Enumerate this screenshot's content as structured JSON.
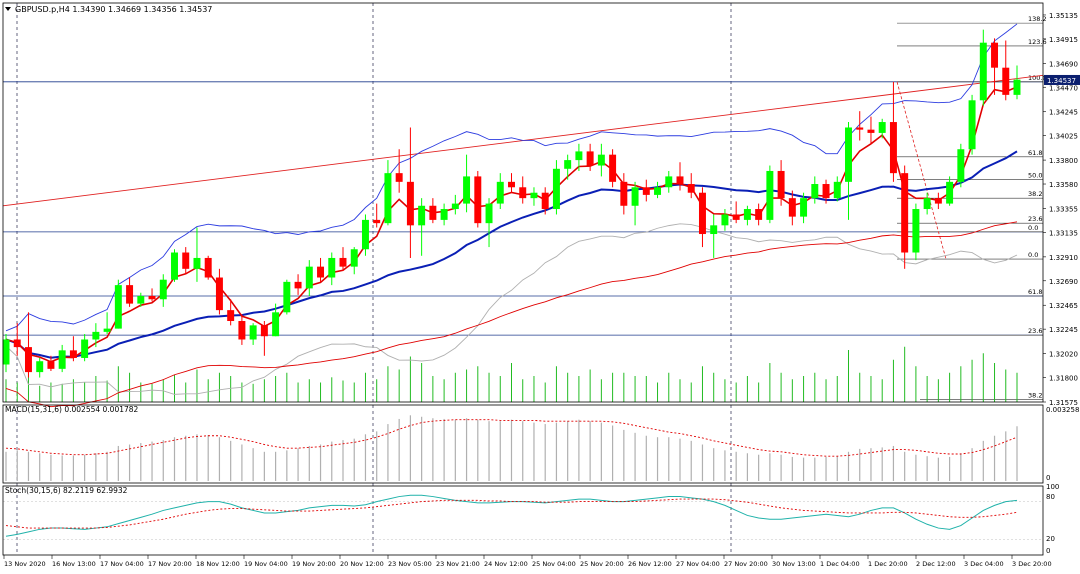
{
  "header": {
    "title": "GBPUSD.p,H4  1.34390  1.34669  1.34356  1.34537"
  },
  "colors": {
    "up": "#00ff00",
    "down": "#ff0000",
    "grid": "#c0c0c0",
    "hline": "#1f3b8c",
    "ma_fast": "#e00000",
    "ma_slow": "#0a1fb5",
    "bb_upper": "#2c3ce0",
    "bb_lower": "#b0b0b0",
    "trend": "#e02020",
    "volume": "#22bb22",
    "macd_hist": "#b0b0b0",
    "macd_signal": "#e00000",
    "stoch_main": "#20b2aa",
    "stoch_signal": "#e00000",
    "price_tag_bg": "#0b1f6f"
  },
  "price_axis": {
    "labels": [
      "1.35135",
      "1.34915",
      "1.34690",
      "1.34470",
      "1.34245",
      "1.34025",
      "1.33800",
      "1.33580",
      "1.33355",
      "1.33135",
      "1.32910",
      "1.32690",
      "1.32465",
      "1.32245",
      "1.32020",
      "1.31800",
      "1.31575"
    ],
    "current_price": "1.34537"
  },
  "fib_levels": [
    {
      "label": "138.2",
      "price": 1.3506
    },
    {
      "label": "123.6",
      "price": 1.3485
    },
    {
      "label": "100.0",
      "price": 1.3452
    },
    {
      "label": "61.8",
      "price": 1.3383
    },
    {
      "label": "50.0",
      "price": 1.3362
    },
    {
      "label": "38.2",
      "price": 1.3345
    },
    {
      "label": "23.6",
      "price": 1.3322
    },
    {
      "label": "0.0",
      "price": 1.3314
    },
    {
      "label": "0.0",
      "price": 1.3289
    },
    {
      "label": "61.8",
      "price": 1.3255
    },
    {
      "label": "23.6",
      "price": 1.3219
    },
    {
      "label": "38.2",
      "price": 1.316
    }
  ],
  "macd": {
    "label": "MACD(15,31,6) 0.002554 0.001782",
    "axis_top": "0.003258",
    "axis_zero": "0"
  },
  "stoch": {
    "label": "Stoch(30,15,6) 82.2119 62.9932",
    "ticks": [
      "100",
      "80",
      "20",
      "0"
    ]
  },
  "time_axis": {
    "labels": [
      "13 Nov 2020",
      "16 Nov 13:00",
      "17 Nov 04:00",
      "17 Nov 20:00",
      "18 Nov 12:00",
      "19 Nov 04:00",
      "19 Nov 20:00",
      "20 Nov 12:00",
      "23 Nov 05:00",
      "23 Nov 21:00",
      "24 Nov 12:00",
      "25 Nov 04:00",
      "25 Nov 20:00",
      "26 Nov 12:00",
      "27 Nov 04:00",
      "27 Nov 20:00",
      "30 Nov 13:00",
      "1 Dec 04:00",
      "1 Dec 20:00",
      "2 Dec 12:00",
      "3 Dec 04:00",
      "3 Dec 20:00"
    ]
  },
  "chart_data": {
    "type": "candlestick",
    "title": "GBPUSD.p,H4",
    "ylim": [
      1.31575,
      1.35245
    ],
    "candles": [
      [
        1.3192,
        1.322,
        1.3185,
        1.3215
      ],
      [
        1.3215,
        1.323,
        1.32,
        1.3208
      ],
      [
        1.3208,
        1.324,
        1.318,
        1.3185
      ],
      [
        1.3185,
        1.3198,
        1.318,
        1.3195
      ],
      [
        1.3195,
        1.32,
        1.3186,
        1.3188
      ],
      [
        1.3188,
        1.321,
        1.3185,
        1.3205
      ],
      [
        1.3205,
        1.3218,
        1.3195,
        1.3198
      ],
      [
        1.3198,
        1.322,
        1.3195,
        1.3215
      ],
      [
        1.3215,
        1.323,
        1.3208,
        1.3222
      ],
      [
        1.3222,
        1.324,
        1.322,
        1.3225
      ],
      [
        1.3225,
        1.327,
        1.3225,
        1.3265
      ],
      [
        1.3265,
        1.3272,
        1.3245,
        1.3248
      ],
      [
        1.3248,
        1.3258,
        1.3245,
        1.3255
      ],
      [
        1.3255,
        1.3262,
        1.325,
        1.3252
      ],
      [
        1.3252,
        1.3275,
        1.3245,
        1.327
      ],
      [
        1.327,
        1.3298,
        1.3268,
        1.3295
      ],
      [
        1.3295,
        1.33,
        1.3275,
        1.328
      ],
      [
        1.328,
        1.3318,
        1.3268,
        1.329
      ],
      [
        1.329,
        1.3292,
        1.327,
        1.3272
      ],
      [
        1.3272,
        1.328,
        1.3238,
        1.3242
      ],
      [
        1.3242,
        1.3252,
        1.3228,
        1.3232
      ],
      [
        1.3232,
        1.3238,
        1.321,
        1.3215
      ],
      [
        1.3215,
        1.323,
        1.321,
        1.3228
      ],
      [
        1.3228,
        1.3232,
        1.32,
        1.3218
      ],
      [
        1.3218,
        1.3248,
        1.3218,
        1.324
      ],
      [
        1.324,
        1.327,
        1.3238,
        1.3268
      ],
      [
        1.3268,
        1.3275,
        1.3256,
        1.3262
      ],
      [
        1.3262,
        1.3288,
        1.3255,
        1.3282
      ],
      [
        1.3282,
        1.329,
        1.3268,
        1.3272
      ],
      [
        1.3272,
        1.3295,
        1.3265,
        1.329
      ],
      [
        1.329,
        1.33,
        1.3278,
        1.3282
      ],
      [
        1.3282,
        1.33,
        1.3275,
        1.3298
      ],
      [
        1.3298,
        1.333,
        1.3292,
        1.3325
      ],
      [
        1.3325,
        1.334,
        1.3318,
        1.3322
      ],
      [
        1.3322,
        1.338,
        1.332,
        1.3368
      ],
      [
        1.3368,
        1.339,
        1.335,
        1.336
      ],
      [
        1.336,
        1.341,
        1.329,
        1.332
      ],
      [
        1.332,
        1.3345,
        1.3292,
        1.3338
      ],
      [
        1.3338,
        1.3345,
        1.3322,
        1.3325
      ],
      [
        1.3325,
        1.334,
        1.332,
        1.3335
      ],
      [
        1.3335,
        1.3348,
        1.333,
        1.334
      ],
      [
        1.334,
        1.3385,
        1.3332,
        1.3365
      ],
      [
        1.3365,
        1.337,
        1.3318,
        1.3322
      ],
      [
        1.3322,
        1.3345,
        1.33,
        1.334
      ],
      [
        1.334,
        1.3368,
        1.3335,
        1.336
      ],
      [
        1.336,
        1.3368,
        1.335,
        1.3355
      ],
      [
        1.3355,
        1.3365,
        1.334,
        1.3345
      ],
      [
        1.3345,
        1.3355,
        1.3338,
        1.335
      ],
      [
        1.335,
        1.3355,
        1.333,
        1.3335
      ],
      [
        1.3335,
        1.338,
        1.333,
        1.3372
      ],
      [
        1.3372,
        1.3385,
        1.3362,
        1.338
      ],
      [
        1.338,
        1.3395,
        1.337,
        1.3388
      ],
      [
        1.3388,
        1.3395,
        1.337,
        1.3375
      ],
      [
        1.3375,
        1.3395,
        1.3365,
        1.3385
      ],
      [
        1.3385,
        1.339,
        1.3355,
        1.336
      ],
      [
        1.336,
        1.3368,
        1.333,
        1.3338
      ],
      [
        1.3338,
        1.336,
        1.332,
        1.3355
      ],
      [
        1.3355,
        1.3362,
        1.3342,
        1.3348
      ],
      [
        1.3348,
        1.336,
        1.3345,
        1.3355
      ],
      [
        1.3355,
        1.337,
        1.335,
        1.3365
      ],
      [
        1.3365,
        1.3378,
        1.3352,
        1.3358
      ],
      [
        1.3358,
        1.3368,
        1.3345,
        1.335
      ],
      [
        1.335,
        1.3355,
        1.33,
        1.3312
      ],
      [
        1.3312,
        1.333,
        1.329,
        1.332
      ],
      [
        1.332,
        1.3335,
        1.3315,
        1.333
      ],
      [
        1.333,
        1.3342,
        1.3322,
        1.3325
      ],
      [
        1.3325,
        1.3338,
        1.332,
        1.3335
      ],
      [
        1.3335,
        1.334,
        1.332,
        1.3325
      ],
      [
        1.3325,
        1.3375,
        1.3322,
        1.337
      ],
      [
        1.337,
        1.338,
        1.3338,
        1.3345
      ],
      [
        1.3345,
        1.3352,
        1.332,
        1.3328
      ],
      [
        1.3328,
        1.335,
        1.3322,
        1.3345
      ],
      [
        1.3345,
        1.3365,
        1.334,
        1.3358
      ],
      [
        1.3358,
        1.3362,
        1.334,
        1.3345
      ],
      [
        1.3345,
        1.3365,
        1.3342,
        1.336
      ],
      [
        1.336,
        1.3415,
        1.3325,
        1.341
      ],
      [
        1.341,
        1.3425,
        1.3398,
        1.3408
      ],
      [
        1.3408,
        1.342,
        1.3395,
        1.3405
      ],
      [
        1.3405,
        1.3418,
        1.34,
        1.3415
      ],
      [
        1.3415,
        1.3452,
        1.336,
        1.3368
      ],
      [
        1.3368,
        1.3375,
        1.328,
        1.3295
      ],
      [
        1.3295,
        1.334,
        1.3288,
        1.3335
      ],
      [
        1.3335,
        1.335,
        1.333,
        1.3345
      ],
      [
        1.3345,
        1.335,
        1.3335,
        1.334
      ],
      [
        1.334,
        1.3365,
        1.3338,
        1.336
      ],
      [
        1.336,
        1.3395,
        1.3355,
        1.339
      ],
      [
        1.339,
        1.344,
        1.3385,
        1.3435
      ],
      [
        1.3435,
        1.35,
        1.343,
        1.3488
      ],
      [
        1.3488,
        1.3492,
        1.344,
        1.3465
      ],
      [
        1.3465,
        1.349,
        1.3435,
        1.344
      ],
      [
        1.344,
        1.3467,
        1.3436,
        1.3454
      ]
    ],
    "volume": [
      0.35,
      0.3,
      0.45,
      0.25,
      0.3,
      0.28,
      0.35,
      0.3,
      0.4,
      0.33,
      0.55,
      0.45,
      0.3,
      0.28,
      0.35,
      0.42,
      0.3,
      0.5,
      0.35,
      0.45,
      0.4,
      0.3,
      0.28,
      0.35,
      0.4,
      0.45,
      0.3,
      0.35,
      0.3,
      0.38,
      0.33,
      0.3,
      0.45,
      0.35,
      0.55,
      0.5,
      0.7,
      0.6,
      0.4,
      0.35,
      0.45,
      0.5,
      0.55,
      0.45,
      0.4,
      0.6,
      0.35,
      0.4,
      0.3,
      0.55,
      0.45,
      0.4,
      0.5,
      0.35,
      0.45,
      0.45,
      0.4,
      0.4,
      0.3,
      0.45,
      0.35,
      0.3,
      0.55,
      0.45,
      0.35,
      0.3,
      0.4,
      0.3,
      0.6,
      0.45,
      0.35,
      0.4,
      0.45,
      0.35,
      0.4,
      0.8,
      0.45,
      0.4,
      0.35,
      0.65,
      0.85,
      0.55,
      0.4,
      0.35,
      0.45,
      0.55,
      0.65,
      0.75,
      0.6,
      0.5,
      0.45
    ],
    "macd_hist": [
      0.4,
      0.42,
      0.4,
      0.38,
      0.36,
      0.35,
      0.35,
      0.36,
      0.38,
      0.4,
      0.48,
      0.5,
      0.52,
      0.54,
      0.56,
      0.6,
      0.62,
      0.64,
      0.63,
      0.6,
      0.55,
      0.5,
      0.45,
      0.4,
      0.4,
      0.42,
      0.45,
      0.48,
      0.5,
      0.54,
      0.56,
      0.58,
      0.64,
      0.68,
      0.78,
      0.85,
      0.9,
      0.88,
      0.86,
      0.85,
      0.84,
      0.86,
      0.84,
      0.82,
      0.82,
      0.84,
      0.82,
      0.8,
      0.78,
      0.8,
      0.82,
      0.84,
      0.82,
      0.8,
      0.76,
      0.7,
      0.66,
      0.62,
      0.6,
      0.6,
      0.58,
      0.55,
      0.5,
      0.45,
      0.42,
      0.4,
      0.38,
      0.36,
      0.38,
      0.36,
      0.33,
      0.32,
      0.32,
      0.33,
      0.34,
      0.4,
      0.44,
      0.45,
      0.46,
      0.48,
      0.4,
      0.36,
      0.34,
      0.32,
      0.33,
      0.38,
      0.45,
      0.55,
      0.62,
      0.68,
      0.75
    ],
    "macd_signal": [
      0.45,
      0.44,
      0.42,
      0.4,
      0.38,
      0.37,
      0.36,
      0.36,
      0.37,
      0.38,
      0.41,
      0.44,
      0.47,
      0.5,
      0.53,
      0.56,
      0.59,
      0.61,
      0.62,
      0.62,
      0.6,
      0.57,
      0.54,
      0.5,
      0.47,
      0.45,
      0.45,
      0.46,
      0.47,
      0.49,
      0.51,
      0.53,
      0.56,
      0.6,
      0.65,
      0.71,
      0.76,
      0.8,
      0.82,
      0.83,
      0.84,
      0.84,
      0.84,
      0.84,
      0.83,
      0.83,
      0.83,
      0.83,
      0.82,
      0.82,
      0.82,
      0.82,
      0.82,
      0.82,
      0.81,
      0.79,
      0.76,
      0.73,
      0.7,
      0.67,
      0.65,
      0.62,
      0.59,
      0.55,
      0.52,
      0.49,
      0.46,
      0.43,
      0.41,
      0.4,
      0.38,
      0.36,
      0.35,
      0.34,
      0.34,
      0.35,
      0.37,
      0.39,
      0.41,
      0.43,
      0.43,
      0.42,
      0.4,
      0.38,
      0.37,
      0.37,
      0.39,
      0.43,
      0.48,
      0.54,
      0.6
    ],
    "stoch_main": [
      25,
      28,
      32,
      36,
      38,
      38,
      37,
      36,
      38,
      40,
      45,
      50,
      55,
      60,
      66,
      70,
      74,
      78,
      80,
      80,
      76,
      70,
      66,
      62,
      62,
      64,
      66,
      70,
      72,
      74,
      74,
      73,
      75,
      80,
      84,
      88,
      90,
      90,
      88,
      85,
      82,
      80,
      78,
      78,
      79,
      80,
      80,
      79,
      78,
      80,
      82,
      84,
      84,
      82,
      80,
      80,
      82,
      84,
      86,
      88,
      88,
      86,
      84,
      80,
      74,
      66,
      58,
      54,
      52,
      52,
      54,
      56,
      58,
      60,
      58,
      56,
      60,
      66,
      70,
      70,
      62,
      52,
      44,
      38,
      36,
      42,
      54,
      66,
      74,
      80,
      82
    ],
    "stoch_signal": [
      42,
      40,
      38,
      38,
      38,
      38,
      38,
      38,
      38,
      39,
      41,
      43,
      46,
      49,
      52,
      56,
      60,
      63,
      66,
      68,
      69,
      69,
      68,
      67,
      66,
      65,
      65,
      65,
      66,
      67,
      68,
      69,
      70,
      72,
      74,
      76,
      78,
      80,
      81,
      82,
      82,
      82,
      82,
      81,
      81,
      80,
      80,
      80,
      79,
      79,
      79,
      80,
      80,
      80,
      80,
      80,
      80,
      81,
      82,
      83,
      84,
      84,
      84,
      84,
      83,
      81,
      79,
      76,
      73,
      70,
      68,
      66,
      65,
      64,
      63,
      62,
      62,
      62,
      62,
      63,
      63,
      62,
      60,
      58,
      56,
      55,
      55,
      56,
      58,
      60,
      63
    ]
  }
}
